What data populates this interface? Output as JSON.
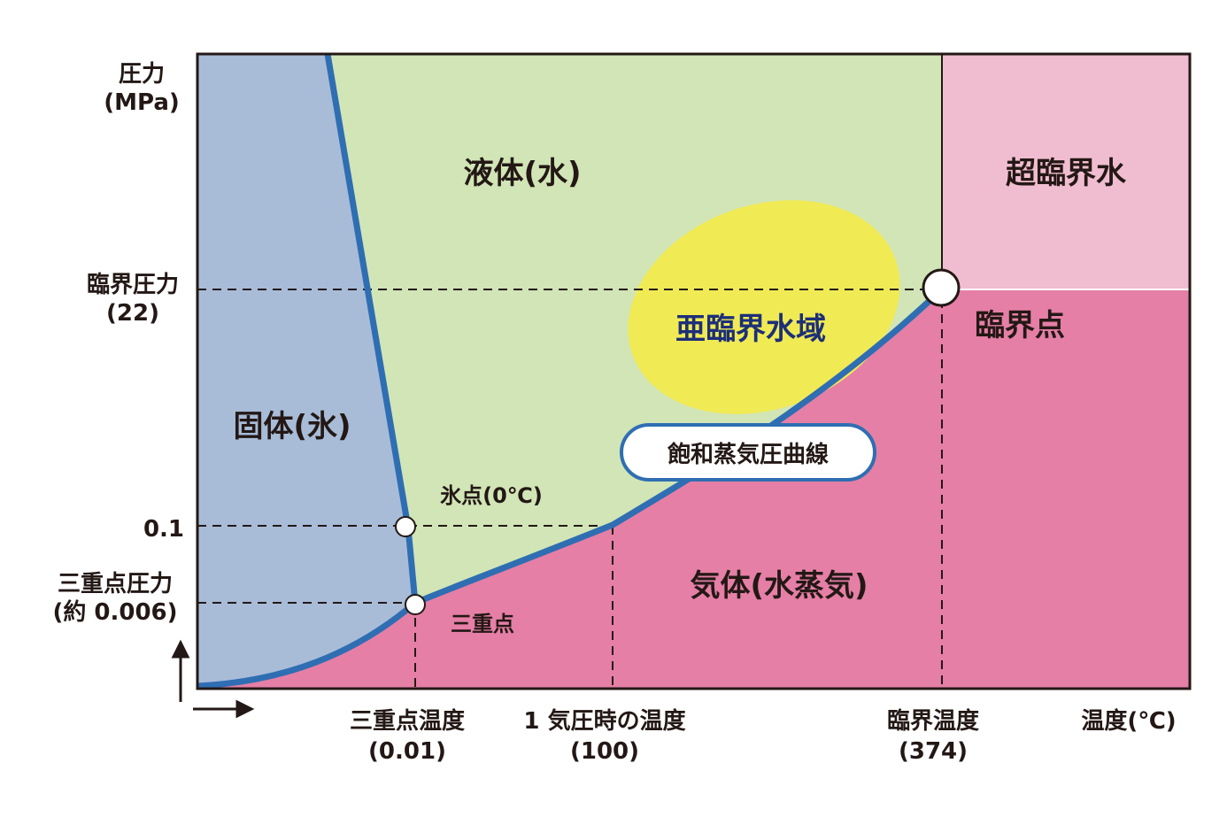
{
  "axes": {
    "y_label_line1": "圧力",
    "y_label_line2": "(MPa)",
    "x_label": "温度(℃)"
  },
  "y_ticks": {
    "critical_pressure_line1": "臨界圧力",
    "critical_pressure_line2": "(22)",
    "atm": "0.1",
    "triple_pressure_line1": "三重点圧力",
    "triple_pressure_line2": "(約 0.006)"
  },
  "x_ticks": {
    "triple_temp_line1": "三重点温度",
    "triple_temp_line2": "(0.01)",
    "boiling_temp_line1": "1 気圧時の温度",
    "boiling_temp_line2": "(100)",
    "critical_temp_line1": "臨界温度",
    "critical_temp_line2": "(374)"
  },
  "regions": {
    "solid": "固体(氷)",
    "liquid": "液体(水)",
    "gas": "気体(水蒸気)",
    "supercritical": "超臨界水",
    "subcritical": "亜臨界水域"
  },
  "points": {
    "melting_point": "氷点(0℃)",
    "triple_point": "三重点",
    "critical_point": "臨界点"
  },
  "curve_label": "飽和蒸気圧曲線",
  "colors": {
    "solid": "#a8bcd8",
    "liquid": "#d1e5b6",
    "gas": "#e57fa6",
    "supercritical": "#f0bdd0",
    "subcritical": "#f0ea55",
    "curve": "#2f6eb2",
    "subcritical_text": "#1d2f78"
  }
}
